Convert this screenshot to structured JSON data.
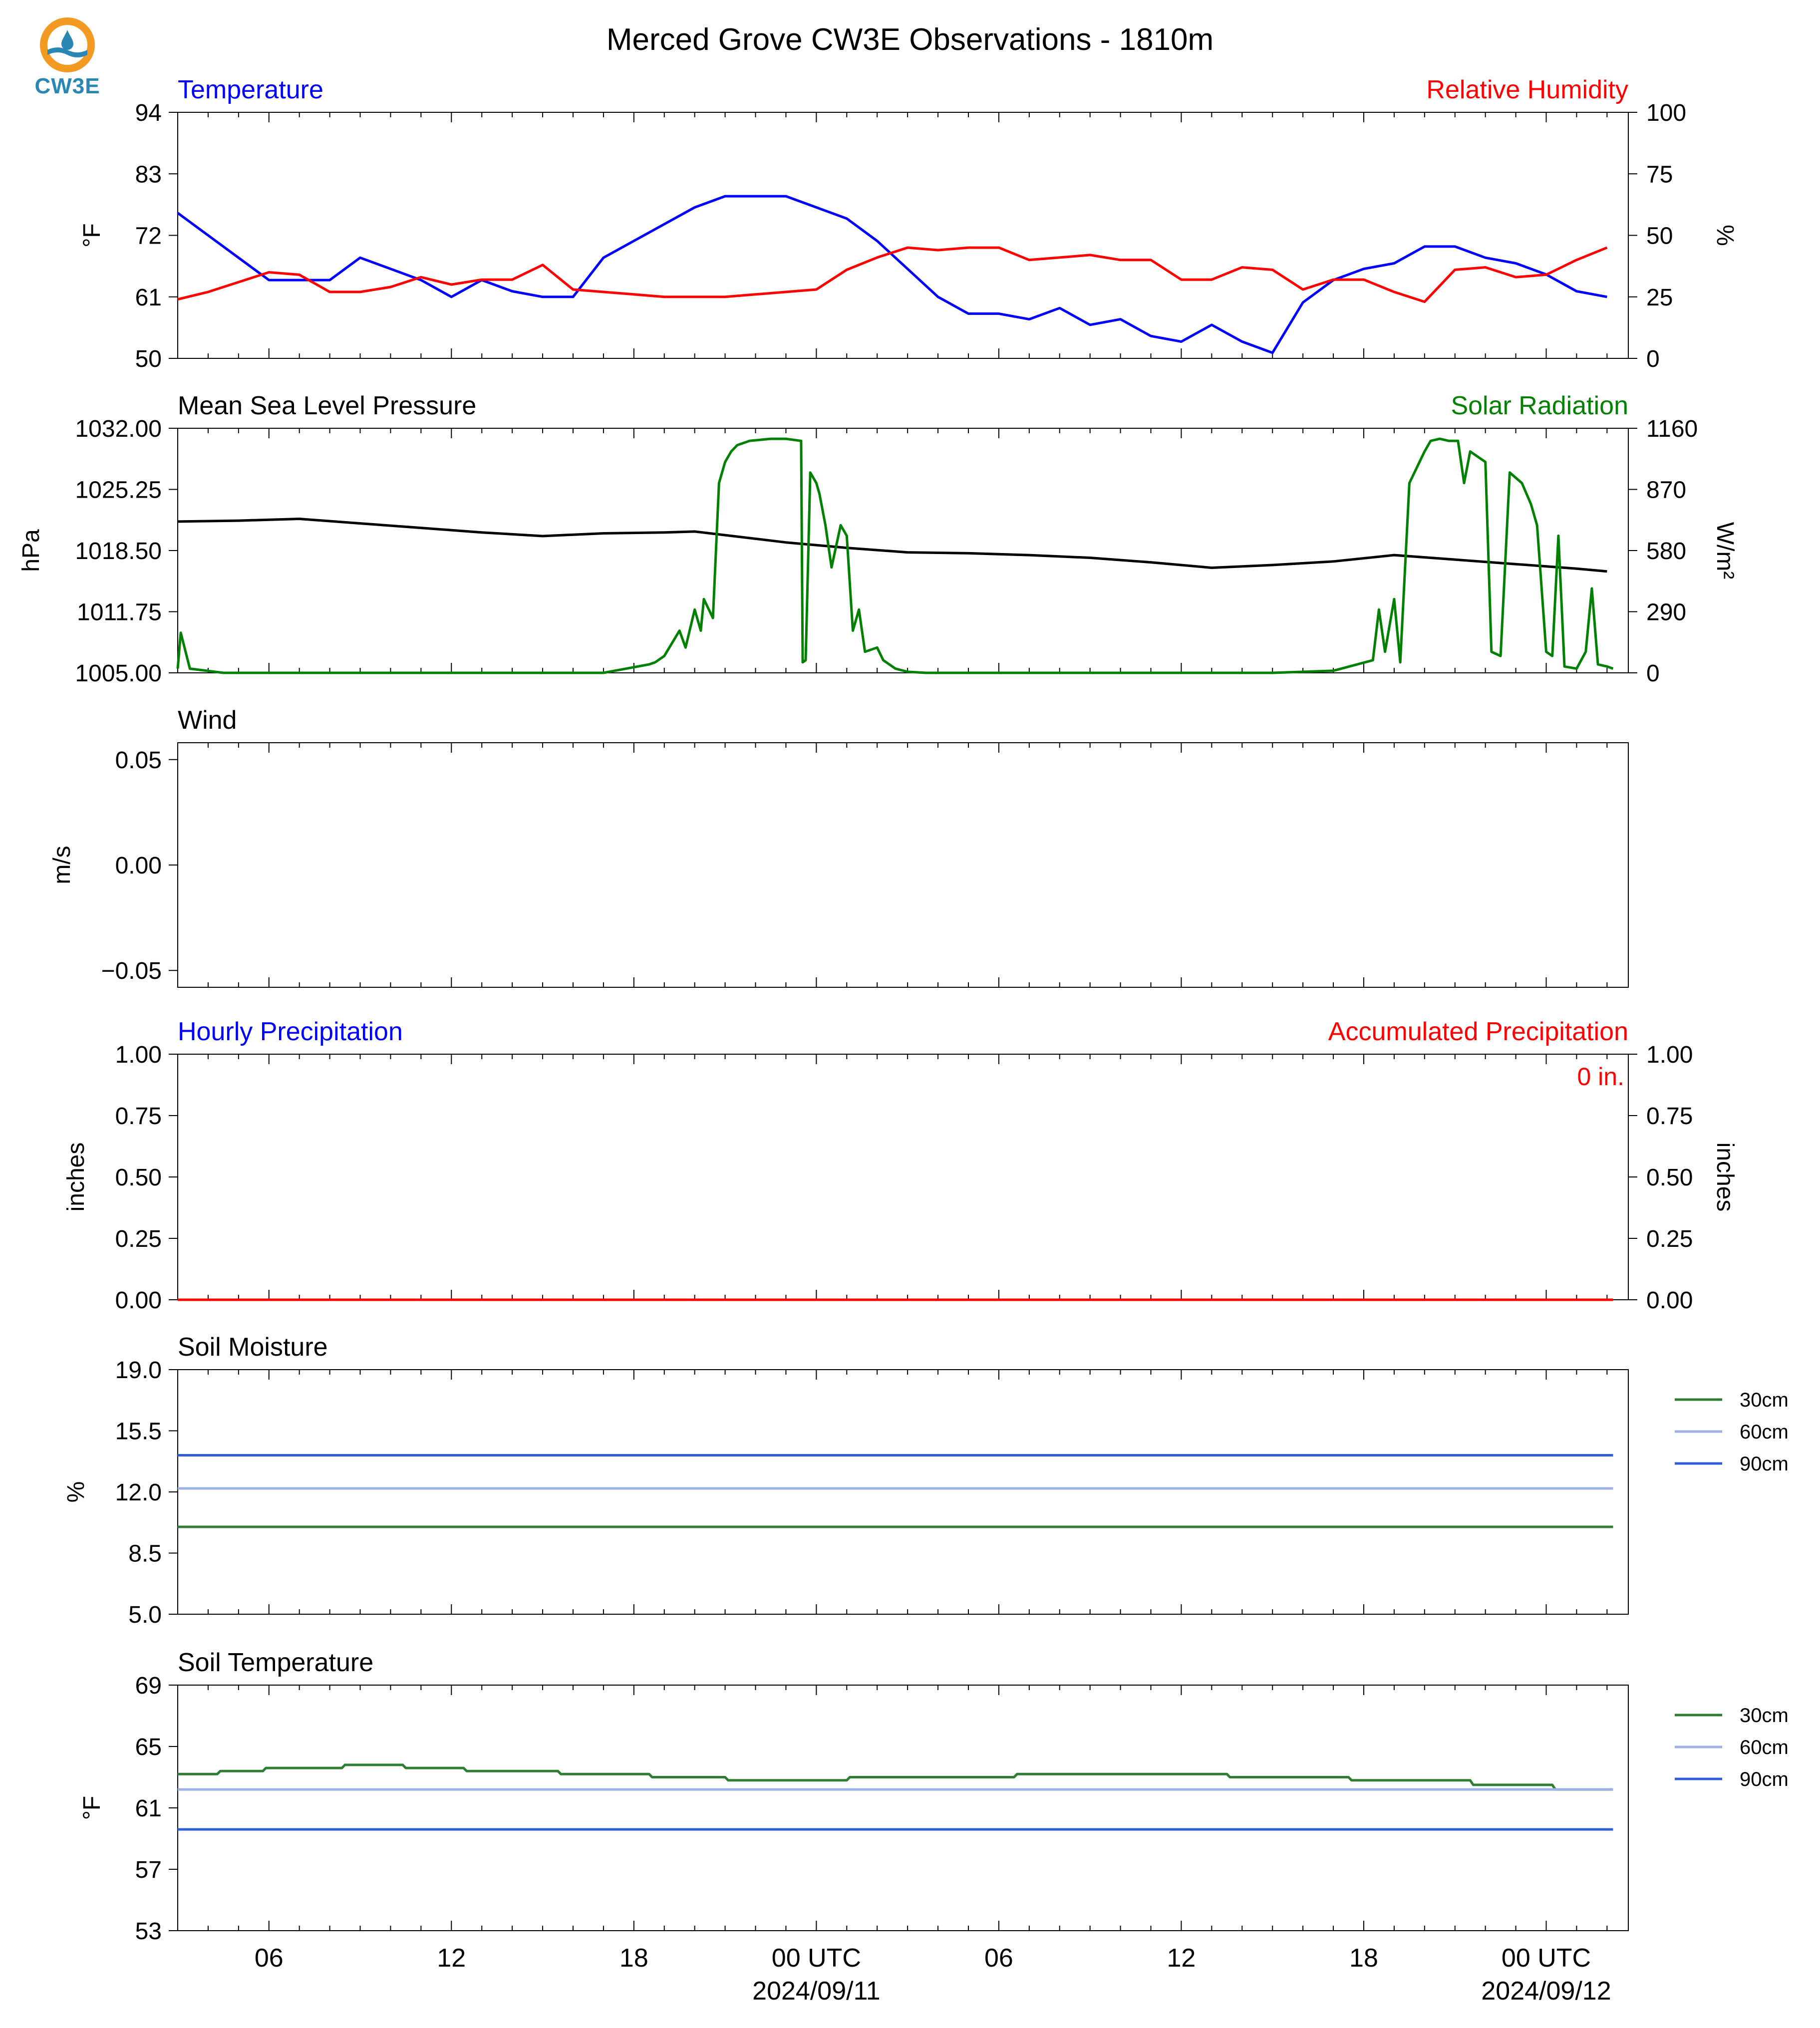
{
  "title": "Merced Grove CW3E Observations - 1810m",
  "logo": {
    "text": "CW3E"
  },
  "colors": {
    "blue": "#0000ff",
    "red": "#ff0000",
    "green": "#008000",
    "black": "#000000",
    "soil30": "#2e7d32",
    "soil60": "#9fb0e6",
    "soil90": "#2f5fd6"
  },
  "x_axis": {
    "ticks": [
      "06",
      "12",
      "18",
      "00 UTC",
      "06",
      "12",
      "18",
      "00 UTC"
    ],
    "dates": [
      "2024/09/11",
      "2024/09/12"
    ]
  },
  "chart_data": [
    {
      "id": "temp_rh",
      "type": "line",
      "left_title": "Temperature",
      "right_title": "Relative Humidity",
      "ylabel": "°F",
      "y2label": "%",
      "ylim": [
        50,
        94
      ],
      "yticks": [
        "50",
        "61",
        "72",
        "83",
        "94"
      ],
      "y2lim": [
        0,
        100
      ],
      "y2ticks": [
        "0",
        "25",
        "50",
        "75",
        "100"
      ],
      "series": [
        {
          "name": "Temperature",
          "axis": "left",
          "color": "#0000ff",
          "x": [
            0,
            1,
            2,
            3,
            4,
            5,
            6,
            7,
            8,
            9,
            10,
            11,
            12,
            13,
            14,
            15,
            16,
            17,
            18,
            19,
            20,
            21,
            22,
            23,
            24,
            25,
            26,
            27,
            28,
            29,
            30,
            31,
            32,
            33,
            34,
            35,
            36,
            37,
            38,
            39,
            40,
            41,
            42,
            43,
            44,
            45,
            46,
            47
          ],
          "values": [
            76,
            72,
            68,
            64,
            64,
            64,
            68,
            66,
            64,
            61,
            64,
            62,
            61,
            61,
            68,
            71,
            74,
            77,
            79,
            79,
            79,
            77,
            75,
            71,
            66,
            61,
            58,
            58,
            57,
            59,
            56,
            57,
            54,
            53,
            56,
            53,
            51,
            60,
            64,
            66,
            67,
            70,
            70,
            68,
            67,
            65,
            62,
            61
          ]
        },
        {
          "name": "Relative Humidity",
          "axis": "right",
          "color": "#ff0000",
          "x": [
            0,
            1,
            2,
            3,
            4,
            5,
            6,
            7,
            8,
            9,
            10,
            11,
            12,
            13,
            14,
            15,
            16,
            17,
            18,
            19,
            20,
            21,
            22,
            23,
            24,
            25,
            26,
            27,
            28,
            29,
            30,
            31,
            32,
            33,
            34,
            35,
            36,
            37,
            38,
            39,
            40,
            41,
            42,
            43,
            44,
            45,
            46,
            47
          ],
          "values": [
            24,
            27,
            31,
            35,
            34,
            27,
            27,
            29,
            33,
            30,
            32,
            32,
            38,
            28,
            27,
            26,
            25,
            25,
            25,
            26,
            27,
            28,
            36,
            41,
            45,
            44,
            45,
            45,
            40,
            41,
            42,
            40,
            40,
            32,
            32,
            37,
            36,
            28,
            32,
            32,
            27,
            23,
            36,
            37,
            33,
            34,
            40,
            45
          ]
        }
      ]
    },
    {
      "id": "pressure_solar",
      "type": "line",
      "left_title": "Mean Sea Level Pressure",
      "right_title": "Solar Radiation",
      "ylabel": "hPa",
      "y2label": "W/m²",
      "ylim": [
        1005,
        1032
      ],
      "yticks": [
        "1005.00",
        "1011.75",
        "1018.50",
        "1025.25",
        "1032.00"
      ],
      "y2lim": [
        0,
        1160
      ],
      "y2ticks": [
        "0",
        "290",
        "580",
        "870",
        "1160"
      ],
      "series": [
        {
          "name": "Mean Sea Level Pressure",
          "axis": "left",
          "color": "#000000",
          "x": [
            0,
            2,
            4,
            6,
            8,
            10,
            12,
            14,
            16,
            17,
            18,
            20,
            22,
            24,
            26,
            28,
            30,
            32,
            34,
            36,
            38,
            40,
            42,
            44,
            46,
            47
          ],
          "values": [
            1021.7,
            1021.8,
            1022.0,
            1021.5,
            1021.0,
            1020.5,
            1020.1,
            1020.4,
            1020.5,
            1020.6,
            1020.2,
            1019.4,
            1018.8,
            1018.3,
            1018.2,
            1018.0,
            1017.7,
            1017.2,
            1016.6,
            1016.9,
            1017.3,
            1018.0,
            1017.5,
            1017.0,
            1016.5,
            1016.2
          ]
        },
        {
          "name": "Solar Radiation",
          "axis": "right",
          "color": "#008000",
          "x": [
            0,
            0.1,
            0.4,
            1.5,
            6,
            10,
            14,
            15.5,
            15.7,
            16,
            16.5,
            16.7,
            17,
            17.2,
            17.3,
            17.6,
            17.8,
            18,
            18.2,
            18.4,
            18.8,
            19.5,
            20,
            20.5,
            20.55,
            20.65,
            20.8,
            21.0,
            21.1,
            21.3,
            21.5,
            21.8,
            22.0,
            22.2,
            22.4,
            22.6,
            23.0,
            23.2,
            23.6,
            24.0,
            24.6,
            25,
            30,
            36,
            38,
            39.3,
            39.5,
            39.7,
            40,
            40.2,
            40.5,
            41,
            41.2,
            41.5,
            41.8,
            42.1,
            42.3,
            42.5,
            43.0,
            43.2,
            43.5,
            43.8,
            44.2,
            44.5,
            44.7,
            45,
            45.2,
            45.4,
            45.6,
            46.0,
            46.3,
            46.5,
            46.7,
            47,
            47.2
          ],
          "values": [
            20,
            190,
            20,
            0,
            0,
            0,
            0,
            40,
            50,
            80,
            200,
            120,
            300,
            200,
            350,
            260,
            900,
            1000,
            1050,
            1080,
            1100,
            1110,
            1110,
            1100,
            50,
            60,
            950,
            900,
            850,
            700,
            500,
            700,
            650,
            200,
            300,
            100,
            120,
            60,
            20,
            5,
            0,
            0,
            0,
            0,
            10,
            60,
            300,
            100,
            350,
            50,
            900,
            1050,
            1100,
            1110,
            1100,
            1100,
            900,
            1050,
            1000,
            100,
            80,
            950,
            900,
            800,
            700,
            100,
            80,
            650,
            30,
            20,
            100,
            400,
            40,
            30,
            20
          ]
        }
      ]
    },
    {
      "id": "wind",
      "type": "line",
      "left_title": "Wind",
      "ylabel": "m/s",
      "ylim": [
        -0.058,
        0.058
      ],
      "yticks": [
        "−0.05",
        "0.00",
        "0.05"
      ],
      "series": []
    },
    {
      "id": "precip",
      "type": "line",
      "left_title": "Hourly Precipitation",
      "right_title": "Accumulated Precipitation",
      "annotation": "0 in.",
      "ylabel": "inches",
      "y2label": "inches",
      "ylim": [
        0,
        1
      ],
      "yticks": [
        "0.00",
        "0.25",
        "0.50",
        "0.75",
        "1.00"
      ],
      "y2lim": [
        0,
        1
      ],
      "y2ticks": [
        "0.00",
        "0.25",
        "0.50",
        "0.75",
        "1.00"
      ],
      "series": [
        {
          "name": "Hourly Precipitation",
          "axis": "left",
          "color": "#0000ff",
          "x": [
            0,
            47.2
          ],
          "values": [
            0,
            0
          ]
        },
        {
          "name": "Accumulated Precipitation",
          "axis": "right",
          "color": "#ff0000",
          "x": [
            0,
            47.2
          ],
          "values": [
            0,
            0
          ]
        }
      ]
    },
    {
      "id": "soil_moisture",
      "type": "line",
      "left_title": "Soil Moisture",
      "ylabel": "%",
      "ylim": [
        5,
        19
      ],
      "yticks": [
        "5.0",
        "8.5",
        "12.0",
        "15.5",
        "19.0"
      ],
      "legend": "outside-right",
      "series": [
        {
          "name": "30cm",
          "color": "#2e7d32",
          "x": [
            0,
            47.2
          ],
          "values": [
            10.0,
            10.0
          ]
        },
        {
          "name": "60cm",
          "color": "#9fb0e6",
          "x": [
            0,
            47.2
          ],
          "values": [
            12.2,
            12.2
          ]
        },
        {
          "name": "90cm",
          "color": "#2f5fd6",
          "x": [
            0,
            47.2
          ],
          "values": [
            14.1,
            14.1
          ]
        }
      ]
    },
    {
      "id": "soil_temp",
      "type": "line",
      "left_title": "Soil Temperature",
      "ylabel": "°F",
      "ylim": [
        53,
        69
      ],
      "yticks": [
        "53",
        "57",
        "61",
        "65",
        "69"
      ],
      "legend": "outside-right",
      "series": [
        {
          "name": "30cm",
          "color": "#2e7d32",
          "x": [
            0,
            1.3,
            1.4,
            2.8,
            2.9,
            5.4,
            5.5,
            7.4,
            7.5,
            9.4,
            9.5,
            12.5,
            12.6,
            15.5,
            15.6,
            18.0,
            18.1,
            22.0,
            22.1,
            27.5,
            27.6,
            34.5,
            34.6,
            38.5,
            38.6,
            42.5,
            42.6,
            45.2,
            45.3,
            47.2
          ],
          "values": [
            63.2,
            63.2,
            63.4,
            63.4,
            63.6,
            63.6,
            63.8,
            63.8,
            63.6,
            63.6,
            63.4,
            63.4,
            63.2,
            63.2,
            63.0,
            63.0,
            62.8,
            62.8,
            63.0,
            63.0,
            63.2,
            63.2,
            63.0,
            63.0,
            62.8,
            62.8,
            62.5,
            62.5,
            62.2,
            62.2
          ]
        },
        {
          "name": "60cm",
          "color": "#9fb0e6",
          "x": [
            0,
            47.2
          ],
          "values": [
            62.2,
            62.2
          ]
        },
        {
          "name": "90cm",
          "color": "#2f5fd6",
          "x": [
            0,
            47.2
          ],
          "values": [
            59.6,
            59.6
          ]
        }
      ]
    }
  ]
}
